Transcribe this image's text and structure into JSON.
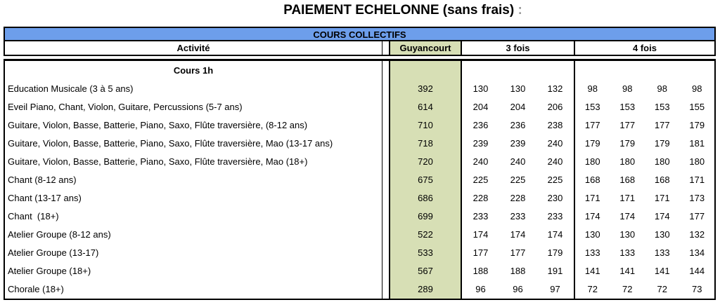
{
  "title": "PAIEMENT ECHELONNE (sans frais)",
  "title_suffix": " :",
  "table": {
    "banner": "COURS COLLECTIFS",
    "headers": {
      "activity": "Activité",
      "location": "Guyancourt",
      "three": "3 fois",
      "four": "4 fois"
    },
    "section": "Cours 1h",
    "rows": [
      {
        "activity": "Education Musicale (3 à 5 ans)",
        "total": 392,
        "three": [
          130,
          130,
          132
        ],
        "four": [
          98,
          98,
          98,
          98
        ]
      },
      {
        "activity": "Eveil Piano, Chant, Violon, Guitare, Percussions (5-7 ans)",
        "total": 614,
        "three": [
          204,
          204,
          206
        ],
        "four": [
          153,
          153,
          153,
          155
        ]
      },
      {
        "activity": "Guitare, Violon, Basse, Batterie, Piano, Saxo, Flûte traversière, (8-12 ans)",
        "total": 710,
        "three": [
          236,
          236,
          238
        ],
        "four": [
          177,
          177,
          177,
          179
        ]
      },
      {
        "activity": "Guitare, Violon, Basse, Batterie, Piano, Saxo, Flûte traversière, Mao (13-17 ans)",
        "total": 718,
        "three": [
          239,
          239,
          240
        ],
        "four": [
          179,
          179,
          179,
          181
        ]
      },
      {
        "activity": "Guitare, Violon, Basse, Batterie, Piano, Saxo, Flûte traversière, Mao (18+)",
        "total": 720,
        "three": [
          240,
          240,
          240
        ],
        "four": [
          180,
          180,
          180,
          180
        ]
      },
      {
        "activity": "Chant (8-12 ans)",
        "total": 675,
        "three": [
          225,
          225,
          225
        ],
        "four": [
          168,
          168,
          168,
          171
        ]
      },
      {
        "activity": "Chant (13-17 ans)",
        "total": 686,
        "three": [
          228,
          228,
          230
        ],
        "four": [
          171,
          171,
          171,
          173
        ]
      },
      {
        "activity": "Chant  (18+)",
        "total": 699,
        "three": [
          233,
          233,
          233
        ],
        "four": [
          174,
          174,
          174,
          177
        ]
      },
      {
        "activity": "Atelier Groupe (8-12 ans)",
        "total": 522,
        "three": [
          174,
          174,
          174
        ],
        "four": [
          130,
          130,
          130,
          132
        ]
      },
      {
        "activity": "Atelier Groupe (13-17)",
        "total": 533,
        "three": [
          177,
          177,
          179
        ],
        "four": [
          133,
          133,
          133,
          134
        ]
      },
      {
        "activity": "Atelier Groupe (18+)",
        "total": 567,
        "three": [
          188,
          188,
          191
        ],
        "four": [
          141,
          141,
          141,
          144
        ]
      },
      {
        "activity": "Chorale (18+)",
        "total": 289,
        "three": [
          96,
          96,
          97
        ],
        "four": [
          72,
          72,
          72,
          73
        ]
      }
    ],
    "colors": {
      "banner_bg": "#6d9eeb",
      "highlight_bg": "#d7dfb5",
      "border": "#000000"
    }
  }
}
